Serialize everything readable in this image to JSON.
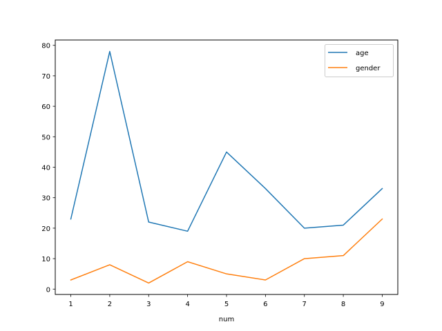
{
  "chart_data": {
    "type": "line",
    "title": "",
    "xlabel": "num",
    "ylabel": "",
    "x": [
      1,
      2,
      3,
      4,
      5,
      6,
      7,
      8,
      9
    ],
    "xticks": [
      "1",
      "2",
      "3",
      "4",
      "5",
      "6",
      "7",
      "8",
      "9"
    ],
    "yticks": [
      "0",
      "10",
      "20",
      "30",
      "40",
      "50",
      "60",
      "70",
      "80"
    ],
    "xlim": [
      0.6,
      9.4
    ],
    "ylim": [
      -1.75,
      81.75
    ],
    "grid": false,
    "legend_position": "top-right",
    "series": [
      {
        "name": "age",
        "color": "#1f77b4",
        "values": [
          23,
          78,
          22,
          19,
          45,
          33,
          20,
          21,
          33
        ]
      },
      {
        "name": "gender",
        "color": "#ff7f0e",
        "values": [
          3,
          8,
          2,
          9,
          5,
          3,
          10,
          11,
          23
        ]
      }
    ]
  }
}
